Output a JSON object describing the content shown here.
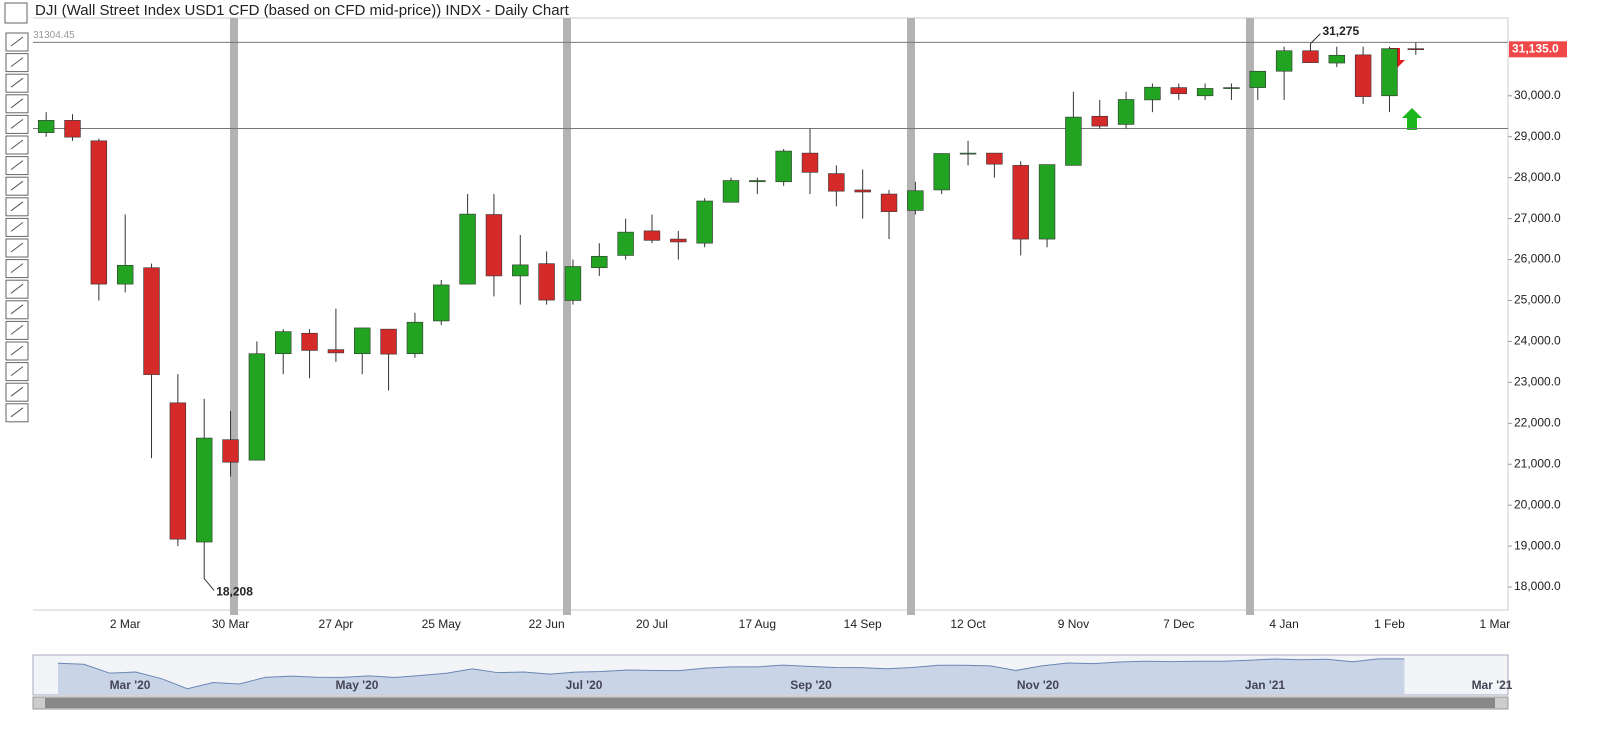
{
  "chart_data": {
    "type": "candlestick",
    "title": "DJI (Wall Street Index USD1 CFD (based on CFD mid-price)) INDX - Daily Chart",
    "categories": [
      null,
      null,
      null,
      "2 Mar",
      null,
      null,
      null,
      "30 Mar",
      null,
      null,
      null,
      "27 Apr",
      null,
      null,
      null,
      "25 May",
      null,
      null,
      null,
      "22 Jun",
      null,
      null,
      null,
      "20 Jul",
      null,
      null,
      null,
      "17 Aug",
      null,
      null,
      null,
      "14 Sep",
      null,
      null,
      null,
      "12 Oct",
      null,
      null,
      null,
      "9 Nov",
      null,
      null,
      null,
      "7 Dec",
      null,
      null,
      null,
      "4 Jan",
      null,
      null,
      null,
      "1 Feb",
      null,
      null,
      null,
      "1 Mar"
    ],
    "open": [
      29100,
      29400,
      28900,
      25400,
      25800,
      22500,
      19100,
      21600,
      21100,
      23700,
      24200,
      23800,
      23700,
      24300,
      23700,
      24500,
      25400,
      27100,
      25600,
      25900,
      25000,
      25800,
      26100,
      26700,
      26500,
      26400,
      27400,
      27900,
      27900,
      28600,
      28100,
      27700,
      27600,
      27200,
      27700,
      28600,
      28600,
      28300,
      26500,
      28300,
      29500,
      29300,
      29900,
      30200,
      30000,
      30200,
      30200,
      30600,
      31100,
      30800,
      31000,
      30000,
      31150,
      null,
      null,
      null
    ],
    "high": [
      29600,
      29550,
      28950,
      27100,
      25900,
      23200,
      22600,
      22300,
      24000,
      24300,
      24300,
      24800,
      24300,
      24300,
      24700,
      25500,
      27600,
      27600,
      26600,
      26200,
      26000,
      26400,
      27000,
      27100,
      26700,
      27500,
      28000,
      28000,
      28700,
      29200,
      28300,
      28200,
      27700,
      27900,
      28600,
      28900,
      28600,
      28400,
      28300,
      30100,
      29900,
      30100,
      30300,
      30300,
      30300,
      30300,
      30600,
      31200,
      31275,
      31200,
      31200,
      31200,
      31300,
      null,
      null,
      null
    ],
    "low": [
      29000,
      28900,
      25000,
      25200,
      21150,
      19000,
      18208,
      20700,
      21100,
      23200,
      23100,
      23500,
      23200,
      22800,
      23600,
      24400,
      25400,
      25100,
      24900,
      24900,
      24900,
      25600,
      26000,
      26400,
      26000,
      26300,
      27400,
      27600,
      27800,
      27600,
      27300,
      27000,
      26500,
      27100,
      27600,
      28300,
      28000,
      26100,
      26300,
      28300,
      29200,
      29200,
      29600,
      29900,
      29900,
      29900,
      29900,
      29900,
      30800,
      30700,
      29800,
      29600,
      31000,
      null,
      null,
      null
    ],
    "close": [
      29400,
      28990,
      25400,
      25860,
      23190,
      19170,
      21640,
      21050,
      23700,
      24240,
      23780,
      23720,
      24330,
      23690,
      24470,
      25380,
      27110,
      25600,
      25870,
      25010,
      25830,
      26080,
      26670,
      26470,
      26430,
      27430,
      27930,
      27930,
      28650,
      28130,
      27670,
      27650,
      27170,
      27680,
      28590,
      28600,
      28330,
      26500,
      28320,
      29480,
      29260,
      29910,
      30210,
      30050,
      30180,
      30200,
      30600,
      31100,
      30810,
      30990,
      29980,
      31150,
      31135,
      null,
      null,
      null
    ],
    "up_color": "#22a322",
    "down_color": "#d42a2a",
    "ylim": [
      17440,
      31900
    ],
    "yticks": [
      {
        "value": 18000,
        "label": "18,000.0"
      },
      {
        "value": 19000,
        "label": "19,000.0"
      },
      {
        "value": 20000,
        "label": "20,000.0"
      },
      {
        "value": 21000,
        "label": "21,000.0"
      },
      {
        "value": 22000,
        "label": "22,000.0"
      },
      {
        "value": 23000,
        "label": "23,000.0"
      },
      {
        "value": 24000,
        "label": "24,000.0"
      },
      {
        "value": 25000,
        "label": "25,000.0"
      },
      {
        "value": 26000,
        "label": "26,000.0"
      },
      {
        "value": 27000,
        "label": "27,000.0"
      },
      {
        "value": 28000,
        "label": "28,000.0"
      },
      {
        "value": 29000,
        "label": "29,000.0"
      },
      {
        "value": 30000,
        "label": "30,000.0"
      }
    ],
    "high_annotation": {
      "value": 31275,
      "label": "31,275"
    },
    "low_annotation": {
      "value": 18208,
      "label": "18,208"
    },
    "crosshair": {
      "value": 31304.45,
      "label": "31304.45"
    },
    "last_price": {
      "value": 31135,
      "label": "31,135.0"
    },
    "support_line": 29200,
    "navigator_labels": [
      "Mar '20",
      "May '20",
      "Jul '20",
      "Sep '20",
      "Nov '20",
      "Jan '21",
      "Mar '21"
    ]
  }
}
